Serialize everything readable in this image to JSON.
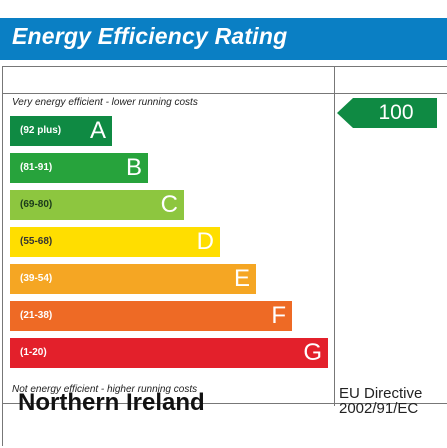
{
  "header": {
    "title": "Energy Efficiency Rating"
  },
  "chart": {
    "top_note": "Very energy efficient - lower running costs",
    "bottom_note": "Not energy efficient - higher running costs",
    "bands": [
      {
        "range": "(92 plus)",
        "letter": "A",
        "color": "#0f8a43"
      },
      {
        "range": "(81-91)",
        "letter": "B",
        "color": "#27a33c"
      },
      {
        "range": "(69-80)",
        "letter": "C",
        "color": "#8dc63f"
      },
      {
        "range": "(55-68)",
        "letter": "D",
        "color": "#ffde00"
      },
      {
        "range": "(39-54)",
        "letter": "E",
        "color": "#f5a623"
      },
      {
        "range": "(21-38)",
        "letter": "F",
        "color": "#ee6a25"
      },
      {
        "range": "(1-20)",
        "letter": "G",
        "color": "#e3202b"
      }
    ],
    "current_rating": {
      "value": "100",
      "color": "#0f8a43"
    }
  },
  "footer": {
    "region": "Northern Ireland",
    "directive_line1": "EU Directive",
    "directive_line2": "2002/91/EC"
  }
}
